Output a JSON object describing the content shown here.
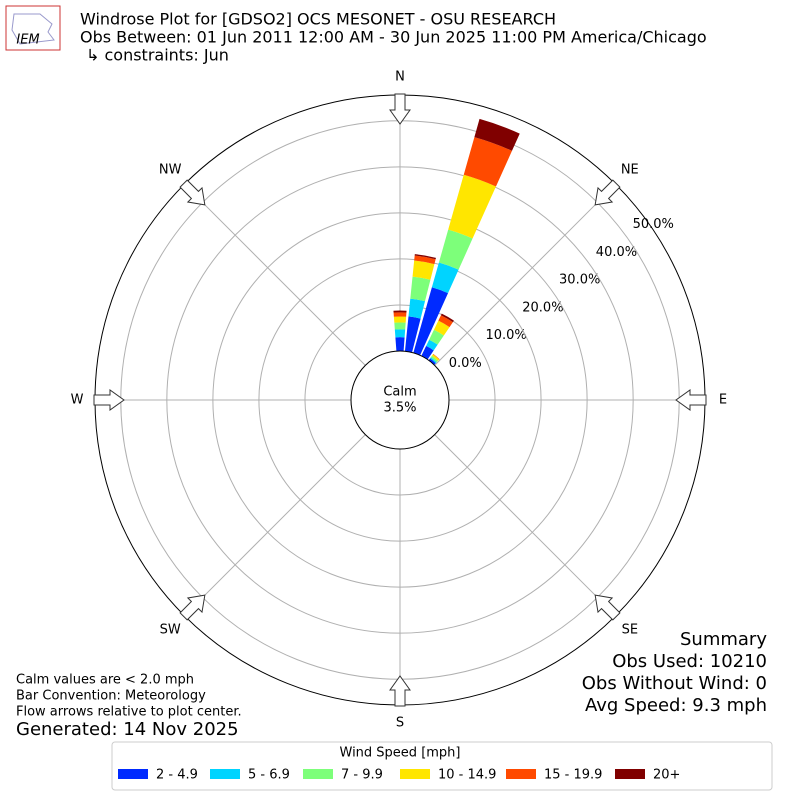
{
  "chart_data": {
    "type": "windrose",
    "logo_text": "IEM",
    "title": "Windrose Plot for [GDSO2] OCS MESONET - OSU RESEARCH",
    "subtitle": "Obs Between: 01 Jun 2011 12:00 AM - 30 Jun 2025 11:00 PM America/Chicago",
    "constraints": "↳ constraints: Jun",
    "compass": [
      "N",
      "NE",
      "E",
      "SE",
      "S",
      "SW",
      "W",
      "NW"
    ],
    "calm_label": "Calm",
    "calm": 3.5,
    "calm_value_label": "3.5%",
    "x": [
      0,
      10,
      20,
      30,
      40
    ],
    "xlim": [
      0,
      360
    ],
    "ylim": [
      0,
      55.6
    ],
    "yticks": [
      {
        "value": 0,
        "label": "0.0%"
      },
      {
        "value": 10,
        "label": "10.0%"
      },
      {
        "value": 20,
        "label": "20.0%"
      },
      {
        "value": 30,
        "label": "30.0%"
      },
      {
        "value": 40,
        "label": "40.0%"
      },
      {
        "value": 50,
        "label": "50.0%"
      }
    ],
    "grid": true,
    "legend_title": "Wind Speed [mph]",
    "series": [
      {
        "name": "2 - 4.9",
        "color": "#002aff",
        "values": [
          3.0,
          7.6,
          14.8,
          2.4,
          0.5
        ]
      },
      {
        "name": "5 - 6.9",
        "color": "#00d4ff",
        "values": [
          1.7,
          3.9,
          5.6,
          1.5,
          0.3
        ]
      },
      {
        "name": "7 - 9.9",
        "color": "#7dff7a",
        "values": [
          1.5,
          4.8,
          7.4,
          2.4,
          0.4
        ]
      },
      {
        "name": "10 - 14.9",
        "color": "#ffe600",
        "values": [
          1.3,
          3.5,
          12.4,
          2.2,
          0.4
        ]
      },
      {
        "name": "15 - 19.9",
        "color": "#ff4a00",
        "values": [
          0.9,
          1.1,
          8.5,
          1.3,
          0.1
        ]
      },
      {
        "name": "20+",
        "color": "#800000",
        "values": [
          0.4,
          0.3,
          4.1,
          0.4,
          0
        ]
      }
    ],
    "notes": [
      "Calm values are < 2.0 mph",
      "Bar Convention: Meteorology",
      "Flow arrows relative to plot center."
    ],
    "generated": "Generated: 14 Nov 2025",
    "summary": [
      "Summary",
      "Obs Used: 10210",
      "Obs Without Wind: 0",
      "Avg Speed: 9.3 mph"
    ]
  }
}
